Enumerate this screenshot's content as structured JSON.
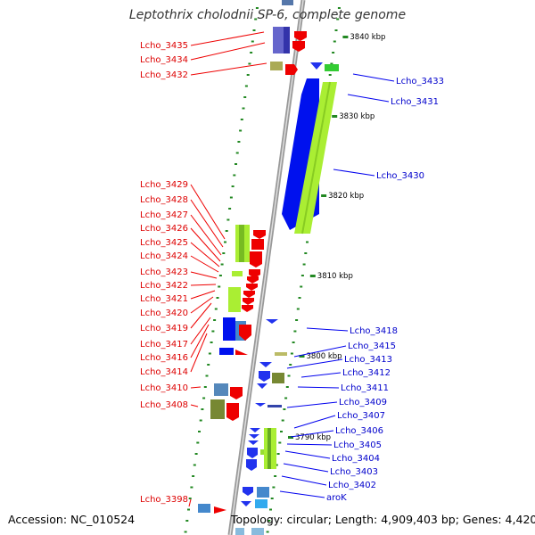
{
  "title": "Leptothrix cholodnii SP-6, complete genome",
  "footer": {
    "accession": "Accession: NC_010524",
    "summary": "Topology: circular; Length: 4,909,403 bp; Genes: 4,420"
  },
  "colors": {
    "backbone": "#999999",
    "forward_feature": "#ee0000",
    "reverse_feature": "#0000ee",
    "forward_label": "#dd0000",
    "reverse_label": "#0000cc",
    "forward_rna_or_cog": "#99dd33",
    "reverse_rna_or_cog": "#66aa33",
    "tick_dash": "#228822"
  },
  "ticks": [
    "3840 kbp",
    "3830 kbp",
    "3820 kbp",
    "3810 kbp",
    "3800 kbp",
    "3790 kbp"
  ],
  "left_genes": [
    "Lcho_3435",
    "Lcho_3434",
    "Lcho_3432",
    "Lcho_3429",
    "Lcho_3428",
    "Lcho_3427",
    "Lcho_3426",
    "Lcho_3425",
    "Lcho_3424",
    "Lcho_3423",
    "Lcho_3422",
    "Lcho_3421",
    "Lcho_3420",
    "Lcho_3419",
    "Lcho_3417",
    "Lcho_3416",
    "Lcho_3414",
    "Lcho_3410",
    "Lcho_3408",
    "Lcho_3398"
  ],
  "right_genes": [
    "Lcho_3433",
    "Lcho_3431",
    "Lcho_3430",
    "Lcho_3418",
    "Lcho_3415",
    "Lcho_3413",
    "Lcho_3412",
    "Lcho_3411",
    "Lcho_3409",
    "Lcho_3407",
    "Lcho_3406",
    "Lcho_3405",
    "Lcho_3404",
    "Lcho_3403",
    "Lcho_3402",
    "aroK"
  ]
}
